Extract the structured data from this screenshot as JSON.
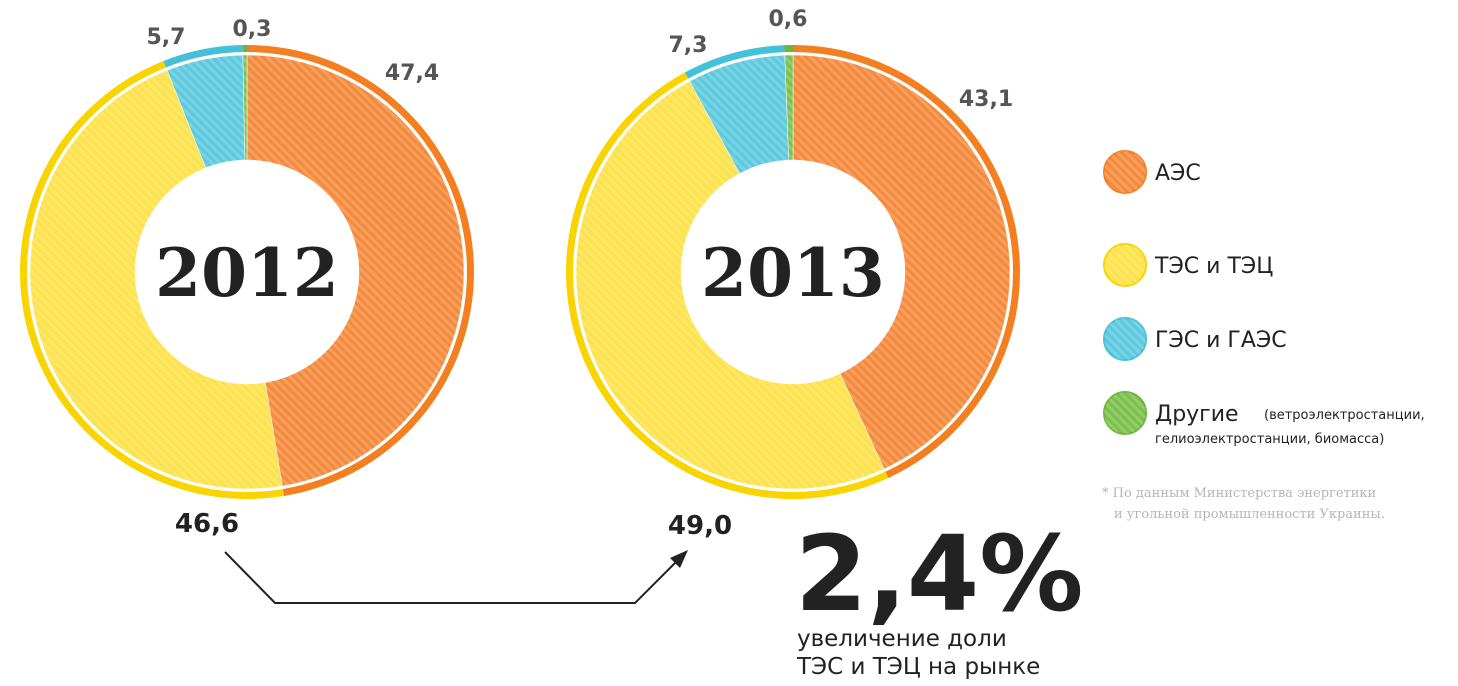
{
  "chart_data": [
    {
      "type": "pie",
      "title": "2012",
      "values": [
        47.4,
        46.6,
        5.7,
        0.3
      ],
      "value_labels": [
        "47,4",
        "46,6",
        "5,7",
        "0,3"
      ]
    },
    {
      "type": "pie",
      "title": "2013",
      "values": [
        43.1,
        49.0,
        7.3,
        0.6
      ],
      "value_labels": [
        "43,1",
        "49,0",
        "7,3",
        "0,6"
      ]
    }
  ],
  "legend": {
    "items": [
      {
        "label": "АЭС",
        "color": "#f58a3c"
      },
      {
        "label": "ТЭС и ТЭЦ",
        "color": "#fde24a"
      },
      {
        "label": "ГЭС и ГАЭС",
        "color": "#5cc9de"
      },
      {
        "label": "Другие",
        "note": [
          "(ветроэлектростанции,",
          "гелиоэлектростанции, биомасса)"
        ],
        "color": "#7cc04b"
      }
    ]
  },
  "annotations": {
    "big": "2,4%",
    "caption": [
      "увеличение доли",
      "ТЭС и ТЭЦ на рынке"
    ],
    "footnote": [
      "* По данным Министерства энергетики",
      "и угольной промышленности Украины."
    ]
  }
}
